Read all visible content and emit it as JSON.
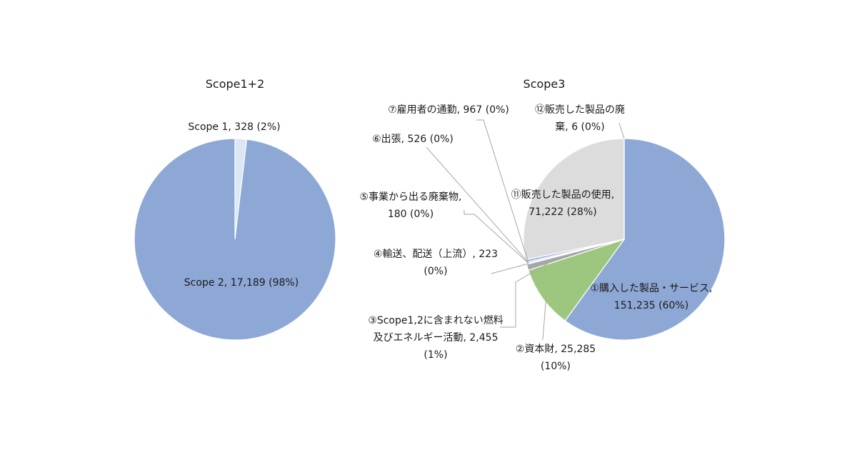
{
  "chart_data": [
    {
      "type": "pie",
      "title": "Scope1+2",
      "slices": [
        {
          "label": "Scope 1, 328 (2%)",
          "value": 328,
          "color": "#dce6f4"
        },
        {
          "label": "Scope 2, 17,189 (98%)",
          "value": 17189,
          "color": "#8ea8d6"
        }
      ]
    },
    {
      "type": "pie",
      "title": "Scope3",
      "slices": [
        {
          "label": "①購入した製品・サービス, 151,235 (60%)",
          "lines": [
            "①購入した製品・サービス,",
            "151,235 (60%)"
          ],
          "value": 151235,
          "color": "#8ea8d6"
        },
        {
          "label": "②資本財, 25,285 (10%)",
          "lines": [
            "②資本財, 25,285",
            "(10%)"
          ],
          "value": 25285,
          "color": "#9dc77e"
        },
        {
          "label": "③Scope1,2に含まれない燃料及びエネルギー活動, 2,455 (1%)",
          "lines": [
            "③Scope1,2に含まれない燃料",
            "及びエネルギー活動, 2,455",
            "(1%)"
          ],
          "value": 2455,
          "color": "#a6a6a6"
        },
        {
          "label": "④輸送、配送（上流）, 223 (0%)",
          "lines": [
            "④輸送、配送（上流）, 223",
            "(0%)"
          ],
          "value": 223,
          "color": "#c9d9ef"
        },
        {
          "label": "⑤事業から出る廃棄物, 180 (0%)",
          "lines": [
            "⑤事業から出る廃棄物,",
            "180 (0%)"
          ],
          "value": 180,
          "color": "#b9cbe8"
        },
        {
          "label": "⑥出張, 526 (0%)",
          "lines": [
            "⑥出張, 526 (0%)"
          ],
          "value": 526,
          "color": "#7f95c4"
        },
        {
          "label": "⑦雇用者の通勤, 967 (0%)",
          "lines": [
            "⑦雇用者の通勤, 967 (0%)"
          ],
          "value": 967,
          "color": "#9aaed9"
        },
        {
          "label": "⑪販売した製品の使用, 71,222 (28%)",
          "lines": [
            "⑪販売した製品の使用,",
            "71,222 (28%)"
          ],
          "value": 71222,
          "color": "#dcdcdc"
        },
        {
          "label": "⑫販売した製品の廃棄, 6 (0%)",
          "lines": [
            "⑫販売した製品の廃",
            "棄, 6 (0%)"
          ],
          "value": 6,
          "color": "#c7d4ea"
        }
      ]
    }
  ]
}
